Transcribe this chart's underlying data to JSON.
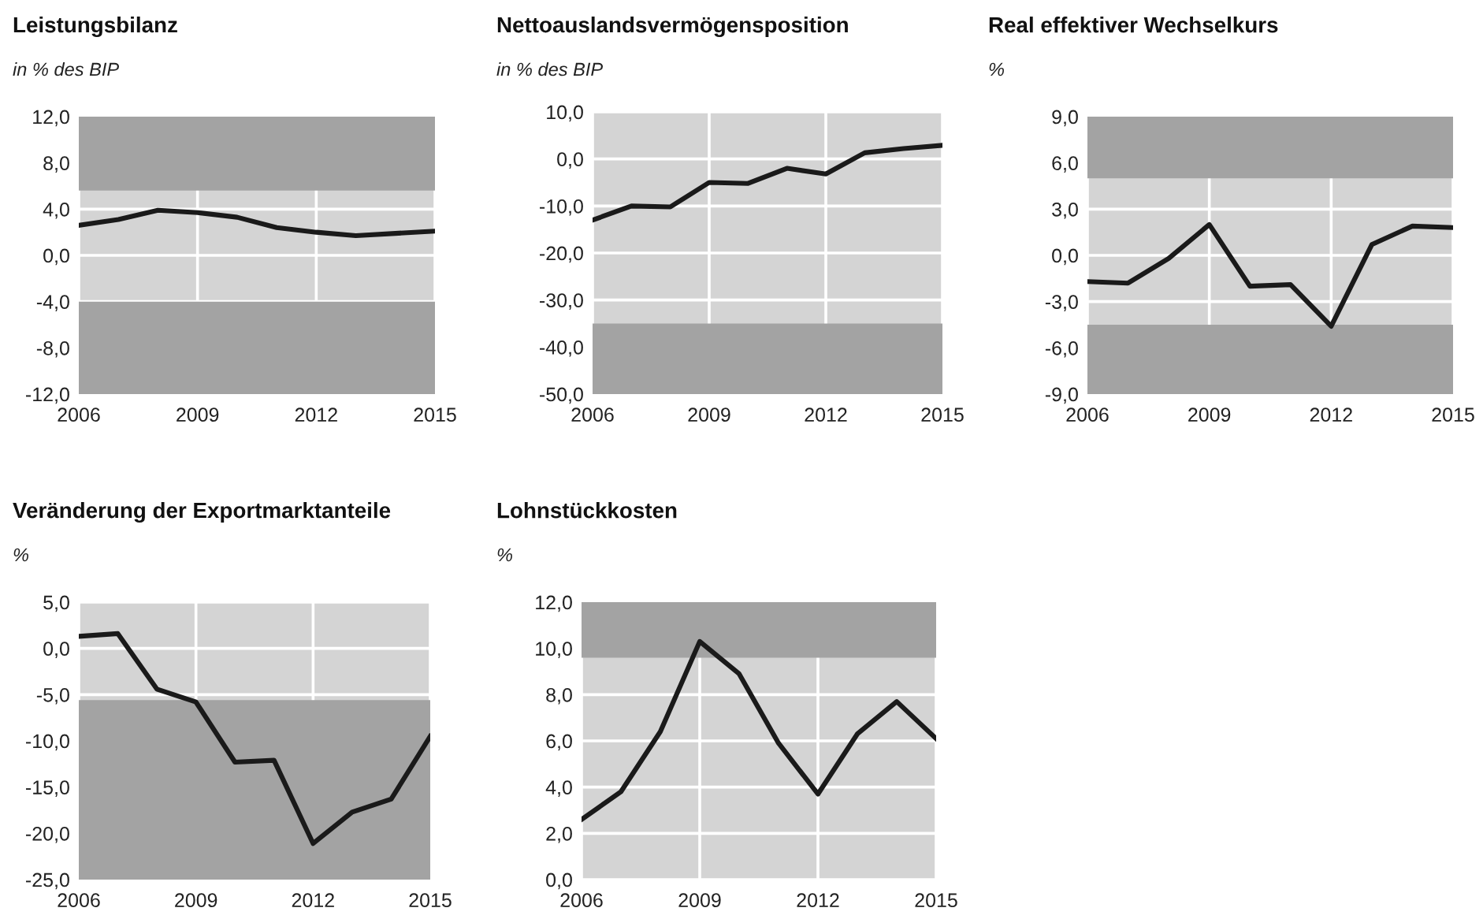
{
  "chart_data": [
    {
      "type": "line",
      "title": "Leistungsbilanz",
      "subtitle": "in % des BIP",
      "x": [
        2006,
        2007,
        2008,
        2009,
        2010,
        2011,
        2012,
        2013,
        2014,
        2015
      ],
      "series": [
        {
          "color": "#1a1a1a",
          "values": [
            2.6,
            3.1,
            3.9,
            3.7,
            3.3,
            2.4,
            2.0,
            1.7,
            1.9,
            2.1
          ]
        }
      ],
      "xlim": [
        2006,
        2015
      ],
      "xticks": [
        2006,
        2009,
        2012,
        2015
      ],
      "ylim": [
        -12,
        12
      ],
      "yticks": [
        {
          "value": -12,
          "label": "-12,0"
        },
        {
          "value": -8,
          "label": "-8,0"
        },
        {
          "value": -4,
          "label": "-4,0"
        },
        {
          "value": 0,
          "label": "0,0"
        },
        {
          "value": 4,
          "label": "4,0"
        },
        {
          "value": 8,
          "label": "8,0"
        },
        {
          "value": 12,
          "label": "12,0"
        }
      ],
      "grid": true,
      "bands": [
        {
          "axis": "y",
          "from": 5.6,
          "to": 12,
          "color": "#a3a3a3"
        },
        {
          "axis": "y",
          "from": -12,
          "to": -4,
          "color": "#a3a3a3"
        }
      ]
    },
    {
      "type": "line",
      "title": "Nettoauslandsvermögensposition",
      "subtitle": "in % des BIP",
      "x": [
        2006,
        2007,
        2008,
        2009,
        2010,
        2011,
        2012,
        2013,
        2014,
        2015
      ],
      "series": [
        {
          "color": "#1a1a1a",
          "values": [
            -13,
            -10,
            -10.2,
            -5,
            -5.2,
            -2,
            -3.2,
            1.3,
            2.2,
            2.9
          ]
        }
      ],
      "xlim": [
        2006,
        2015
      ],
      "xticks": [
        2006,
        2009,
        2012,
        2015
      ],
      "ylim": [
        -50,
        10
      ],
      "yticks": [
        {
          "value": -50,
          "label": "-50,0"
        },
        {
          "value": -40,
          "label": "-40,0"
        },
        {
          "value": -30,
          "label": "-30,0"
        },
        {
          "value": -20,
          "label": "-20,0"
        },
        {
          "value": -10,
          "label": "-10,0"
        },
        {
          "value": 0,
          "label": "0,0"
        },
        {
          "value": 10,
          "label": "10,0"
        }
      ],
      "grid": true,
      "bands": [
        {
          "axis": "y",
          "from": -50,
          "to": -35,
          "color": "#a3a3a3"
        }
      ]
    },
    {
      "type": "line",
      "title": "Real effektiver Wechselkurs",
      "subtitle": "%",
      "x": [
        2006,
        2007,
        2008,
        2009,
        2010,
        2011,
        2012,
        2013,
        2014,
        2015
      ],
      "series": [
        {
          "color": "#1a1a1a",
          "values": [
            -1.7,
            -1.8,
            -0.2,
            2.0,
            -2.0,
            -1.9,
            -4.6,
            0.7,
            1.9,
            1.8
          ]
        }
      ],
      "xlim": [
        2006,
        2015
      ],
      "xticks": [
        2006,
        2009,
        2012,
        2015
      ],
      "ylim": [
        -9,
        9
      ],
      "yticks": [
        {
          "value": -9,
          "label": "-9,0"
        },
        {
          "value": -6,
          "label": "-6,0"
        },
        {
          "value": -3,
          "label": "-3,0"
        },
        {
          "value": 0,
          "label": "0,0"
        },
        {
          "value": 3,
          "label": "3,0"
        },
        {
          "value": 6,
          "label": "6,0"
        },
        {
          "value": 9,
          "label": "9,0"
        }
      ],
      "grid": true,
      "bands": [
        {
          "axis": "y",
          "from": 5,
          "to": 9,
          "color": "#a3a3a3"
        },
        {
          "axis": "y",
          "from": -9,
          "to": -4.5,
          "color": "#a3a3a3"
        }
      ]
    },
    {
      "type": "line",
      "title": "Veränderung der Exportmarktanteile",
      "subtitle": "%",
      "x": [
        2006,
        2007,
        2008,
        2009,
        2010,
        2011,
        2012,
        2013,
        2014,
        2015
      ],
      "series": [
        {
          "color": "#1a1a1a",
          "values": [
            1.3,
            1.6,
            -4.4,
            -5.8,
            -12.3,
            -12.1,
            -21.1,
            -17.7,
            -16.3,
            -9.5
          ]
        }
      ],
      "xlim": [
        2006,
        2015
      ],
      "xticks": [
        2006,
        2009,
        2012,
        2015
      ],
      "ylim": [
        -25,
        5
      ],
      "yticks": [
        {
          "value": -25,
          "label": "-25,0"
        },
        {
          "value": -20,
          "label": "-20,0"
        },
        {
          "value": -15,
          "label": "-15,0"
        },
        {
          "value": -10,
          "label": "-10,0"
        },
        {
          "value": -5,
          "label": "-5,0"
        },
        {
          "value": 0,
          "label": "0,0"
        },
        {
          "value": 5,
          "label": "5,0"
        }
      ],
      "grid": true,
      "bands": [
        {
          "axis": "y",
          "from": -25,
          "to": -5.6,
          "color": "#a3a3a3"
        }
      ]
    },
    {
      "type": "line",
      "title": "Lohnstückkosten",
      "subtitle": "%",
      "x": [
        2006,
        2007,
        2008,
        2009,
        2010,
        2011,
        2012,
        2013,
        2014,
        2015
      ],
      "series": [
        {
          "color": "#1a1a1a",
          "values": [
            2.6,
            3.8,
            6.4,
            10.3,
            8.9,
            5.9,
            3.7,
            6.3,
            7.7,
            6.1
          ]
        }
      ],
      "xlim": [
        2006,
        2015
      ],
      "xticks": [
        2006,
        2009,
        2012,
        2015
      ],
      "ylim": [
        0,
        12
      ],
      "yticks": [
        {
          "value": 0,
          "label": "0,0"
        },
        {
          "value": 2,
          "label": "2,0"
        },
        {
          "value": 4,
          "label": "4,0"
        },
        {
          "value": 6,
          "label": "6,0"
        },
        {
          "value": 8,
          "label": "8,0"
        },
        {
          "value": 10,
          "label": "10,0"
        },
        {
          "value": 12,
          "label": "12,0"
        }
      ],
      "grid": true,
      "bands": [
        {
          "axis": "y",
          "from": 9.6,
          "to": 12,
          "color": "#a3a3a3"
        }
      ]
    }
  ]
}
